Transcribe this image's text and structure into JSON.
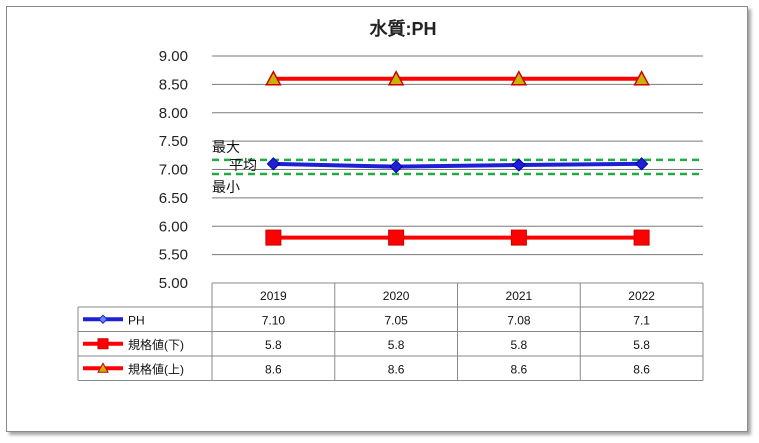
{
  "chart_data": {
    "type": "line",
    "title": "水質:PH",
    "categories": [
      "2019",
      "2020",
      "2021",
      "2022"
    ],
    "ylim": [
      5.0,
      9.0
    ],
    "yticks": [
      "9.00",
      "8.50",
      "8.00",
      "7.50",
      "7.00",
      "6.50",
      "6.00",
      "5.50",
      "5.00"
    ],
    "grid": true,
    "series": [
      {
        "name": "PH",
        "values": [
          7.1,
          7.05,
          7.08,
          7.1
        ],
        "labels": [
          "7.10",
          "7.05",
          "7.08",
          "7.1"
        ],
        "color": "#1f1fd6",
        "marker": "diamond"
      },
      {
        "name": "規格値(下)",
        "values": [
          5.8,
          5.8,
          5.8,
          5.8
        ],
        "labels": [
          "5.8",
          "5.8",
          "5.8",
          "5.8"
        ],
        "color": "#ff0000",
        "marker": "square"
      },
      {
        "name": "規格値(上)",
        "values": [
          8.6,
          8.6,
          8.6,
          8.6
        ],
        "labels": [
          "8.6",
          "8.6",
          "8.6",
          "8.6"
        ],
        "color": "#ff0000",
        "marker": "triangle"
      }
    ],
    "reference_lines": [
      {
        "label": "最大",
        "value": 7.17,
        "color": "#22aa44"
      },
      {
        "label": "平均",
        "value": 7.08
      },
      {
        "label": "最小",
        "value": 6.92,
        "color": "#22aa44"
      }
    ]
  }
}
